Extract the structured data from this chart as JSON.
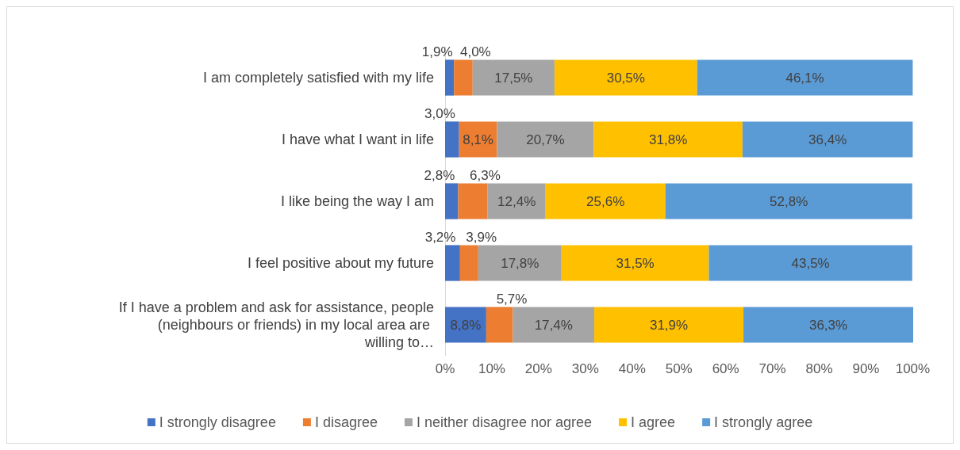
{
  "chart_data": {
    "type": "bar",
    "orientation": "horizontal",
    "stacked": true,
    "categories": [
      "I am completely satisfied with my life",
      "I have what I want in life",
      "I like being the way I am",
      "I feel positive about my future",
      "If I have a problem and ask for assistance, people (neighbours or friends) in my local area are willing to…"
    ],
    "series": [
      {
        "name": "I strongly disagree",
        "color": "#4472c4",
        "values": [
          1.9,
          3.0,
          2.8,
          3.2,
          8.8
        ],
        "value_labels": [
          "1,9%",
          "3,0%",
          "2,8%",
          "3,2%",
          "8,8%"
        ]
      },
      {
        "name": "I disagree",
        "color": "#ed7d31",
        "values": [
          4.0,
          8.1,
          6.3,
          3.9,
          5.7
        ],
        "value_labels": [
          "4,0%",
          "8,1%",
          "6,3%",
          "3,9%",
          "5,7%"
        ]
      },
      {
        "name": "I neither disagree nor agree",
        "color": "#a5a5a5",
        "values": [
          17.5,
          20.7,
          12.4,
          17.8,
          17.4
        ],
        "value_labels": [
          "17,5%",
          "20,7%",
          "12,4%",
          "17,8%",
          "17,4%"
        ]
      },
      {
        "name": "I agree",
        "color": "#ffc000",
        "values": [
          30.5,
          31.8,
          25.6,
          31.5,
          31.9
        ],
        "value_labels": [
          "30,5%",
          "31,8%",
          "25,6%",
          "31,5%",
          "31,9%"
        ]
      },
      {
        "name": "I strongly agree",
        "color": "#5b9bd5",
        "values": [
          46.1,
          36.4,
          52.8,
          43.5,
          36.3
        ],
        "value_labels": [
          "46,1%",
          "36,4%",
          "52,8%",
          "43,5%",
          "36,3%"
        ]
      }
    ],
    "xlim": [
      0,
      100.1
    ],
    "xticks": [
      {
        "value": 0,
        "label": "0%"
      },
      {
        "value": 10,
        "label": "10%"
      },
      {
        "value": 20,
        "label": "20%"
      },
      {
        "value": 30,
        "label": "30%"
      },
      {
        "value": 40,
        "label": "40%"
      },
      {
        "value": 50,
        "label": "50%"
      },
      {
        "value": 60,
        "label": "60%"
      },
      {
        "value": 70,
        "label": "70%"
      },
      {
        "value": 80,
        "label": "80%"
      },
      {
        "value": 90,
        "label": "90%"
      },
      {
        "value": 100,
        "label": "100%"
      }
    ],
    "grid": false,
    "legend": "bottom"
  }
}
